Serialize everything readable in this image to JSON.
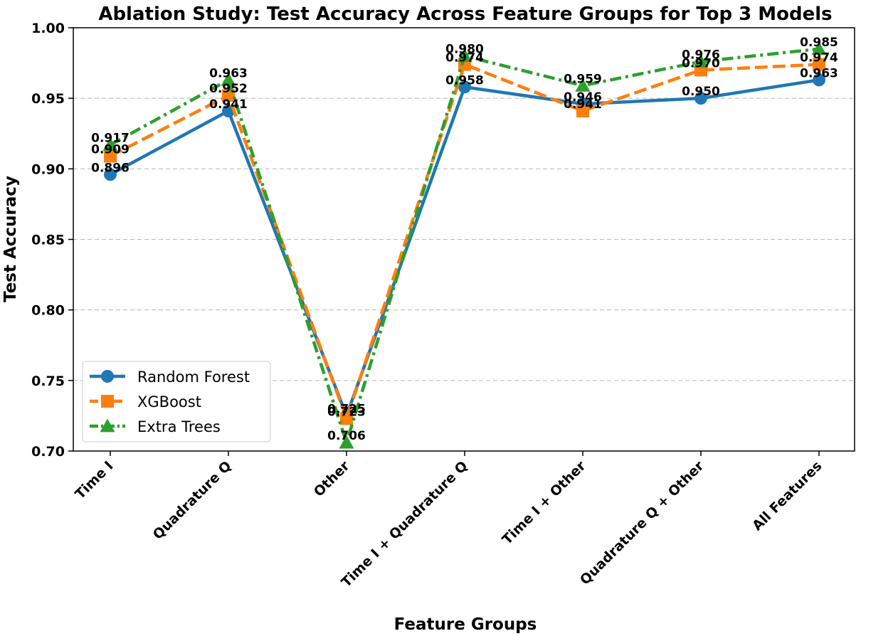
{
  "chart_data": {
    "type": "line",
    "title": "Ablation Study: Test Accuracy Across Feature Groups for Top 3 Models",
    "xlabel": "Feature Groups",
    "ylabel": "Test Accuracy",
    "categories": [
      "Time I",
      "Quadrature Q",
      "Other",
      "Time I + Quadrature Q",
      "Time I + Other",
      "Quadrature Q + Other",
      "All Features"
    ],
    "ylim": [
      0.7,
      1.0
    ],
    "yticks": [
      0.7,
      0.75,
      0.8,
      0.85,
      0.9,
      0.95,
      1.0
    ],
    "ytick_labels": [
      "0.70",
      "0.75",
      "0.80",
      "0.85",
      "0.90",
      "0.95",
      "1.00"
    ],
    "grid": "horizontal-dashed",
    "legend_position": "lower-left",
    "series": [
      {
        "name": "Random Forest",
        "color": "#1f77b4",
        "marker": "circle",
        "linestyle": "solid",
        "values": [
          0.896,
          0.941,
          0.725,
          0.958,
          0.946,
          0.95,
          0.963
        ],
        "labels": [
          "0.896",
          "0.941",
          "0.725",
          "0.958",
          "0.946",
          "0.950",
          "0.963"
        ]
      },
      {
        "name": "XGBoost",
        "color": "#ff7f0e",
        "marker": "square",
        "linestyle": "dashed",
        "values": [
          0.909,
          0.952,
          0.723,
          0.974,
          0.941,
          0.97,
          0.974
        ],
        "labels": [
          "0.909",
          "0.952",
          "0.723",
          "0.974",
          "0.941",
          "0.970",
          "0.974"
        ]
      },
      {
        "name": "Extra Trees",
        "color": "#2ca02c",
        "marker": "triangle",
        "linestyle": "dashdot",
        "values": [
          0.917,
          0.963,
          0.706,
          0.98,
          0.959,
          0.976,
          0.985
        ],
        "labels": [
          "0.917",
          "0.963",
          "0.706",
          "0.980",
          "0.959",
          "0.976",
          "0.985"
        ]
      }
    ]
  }
}
